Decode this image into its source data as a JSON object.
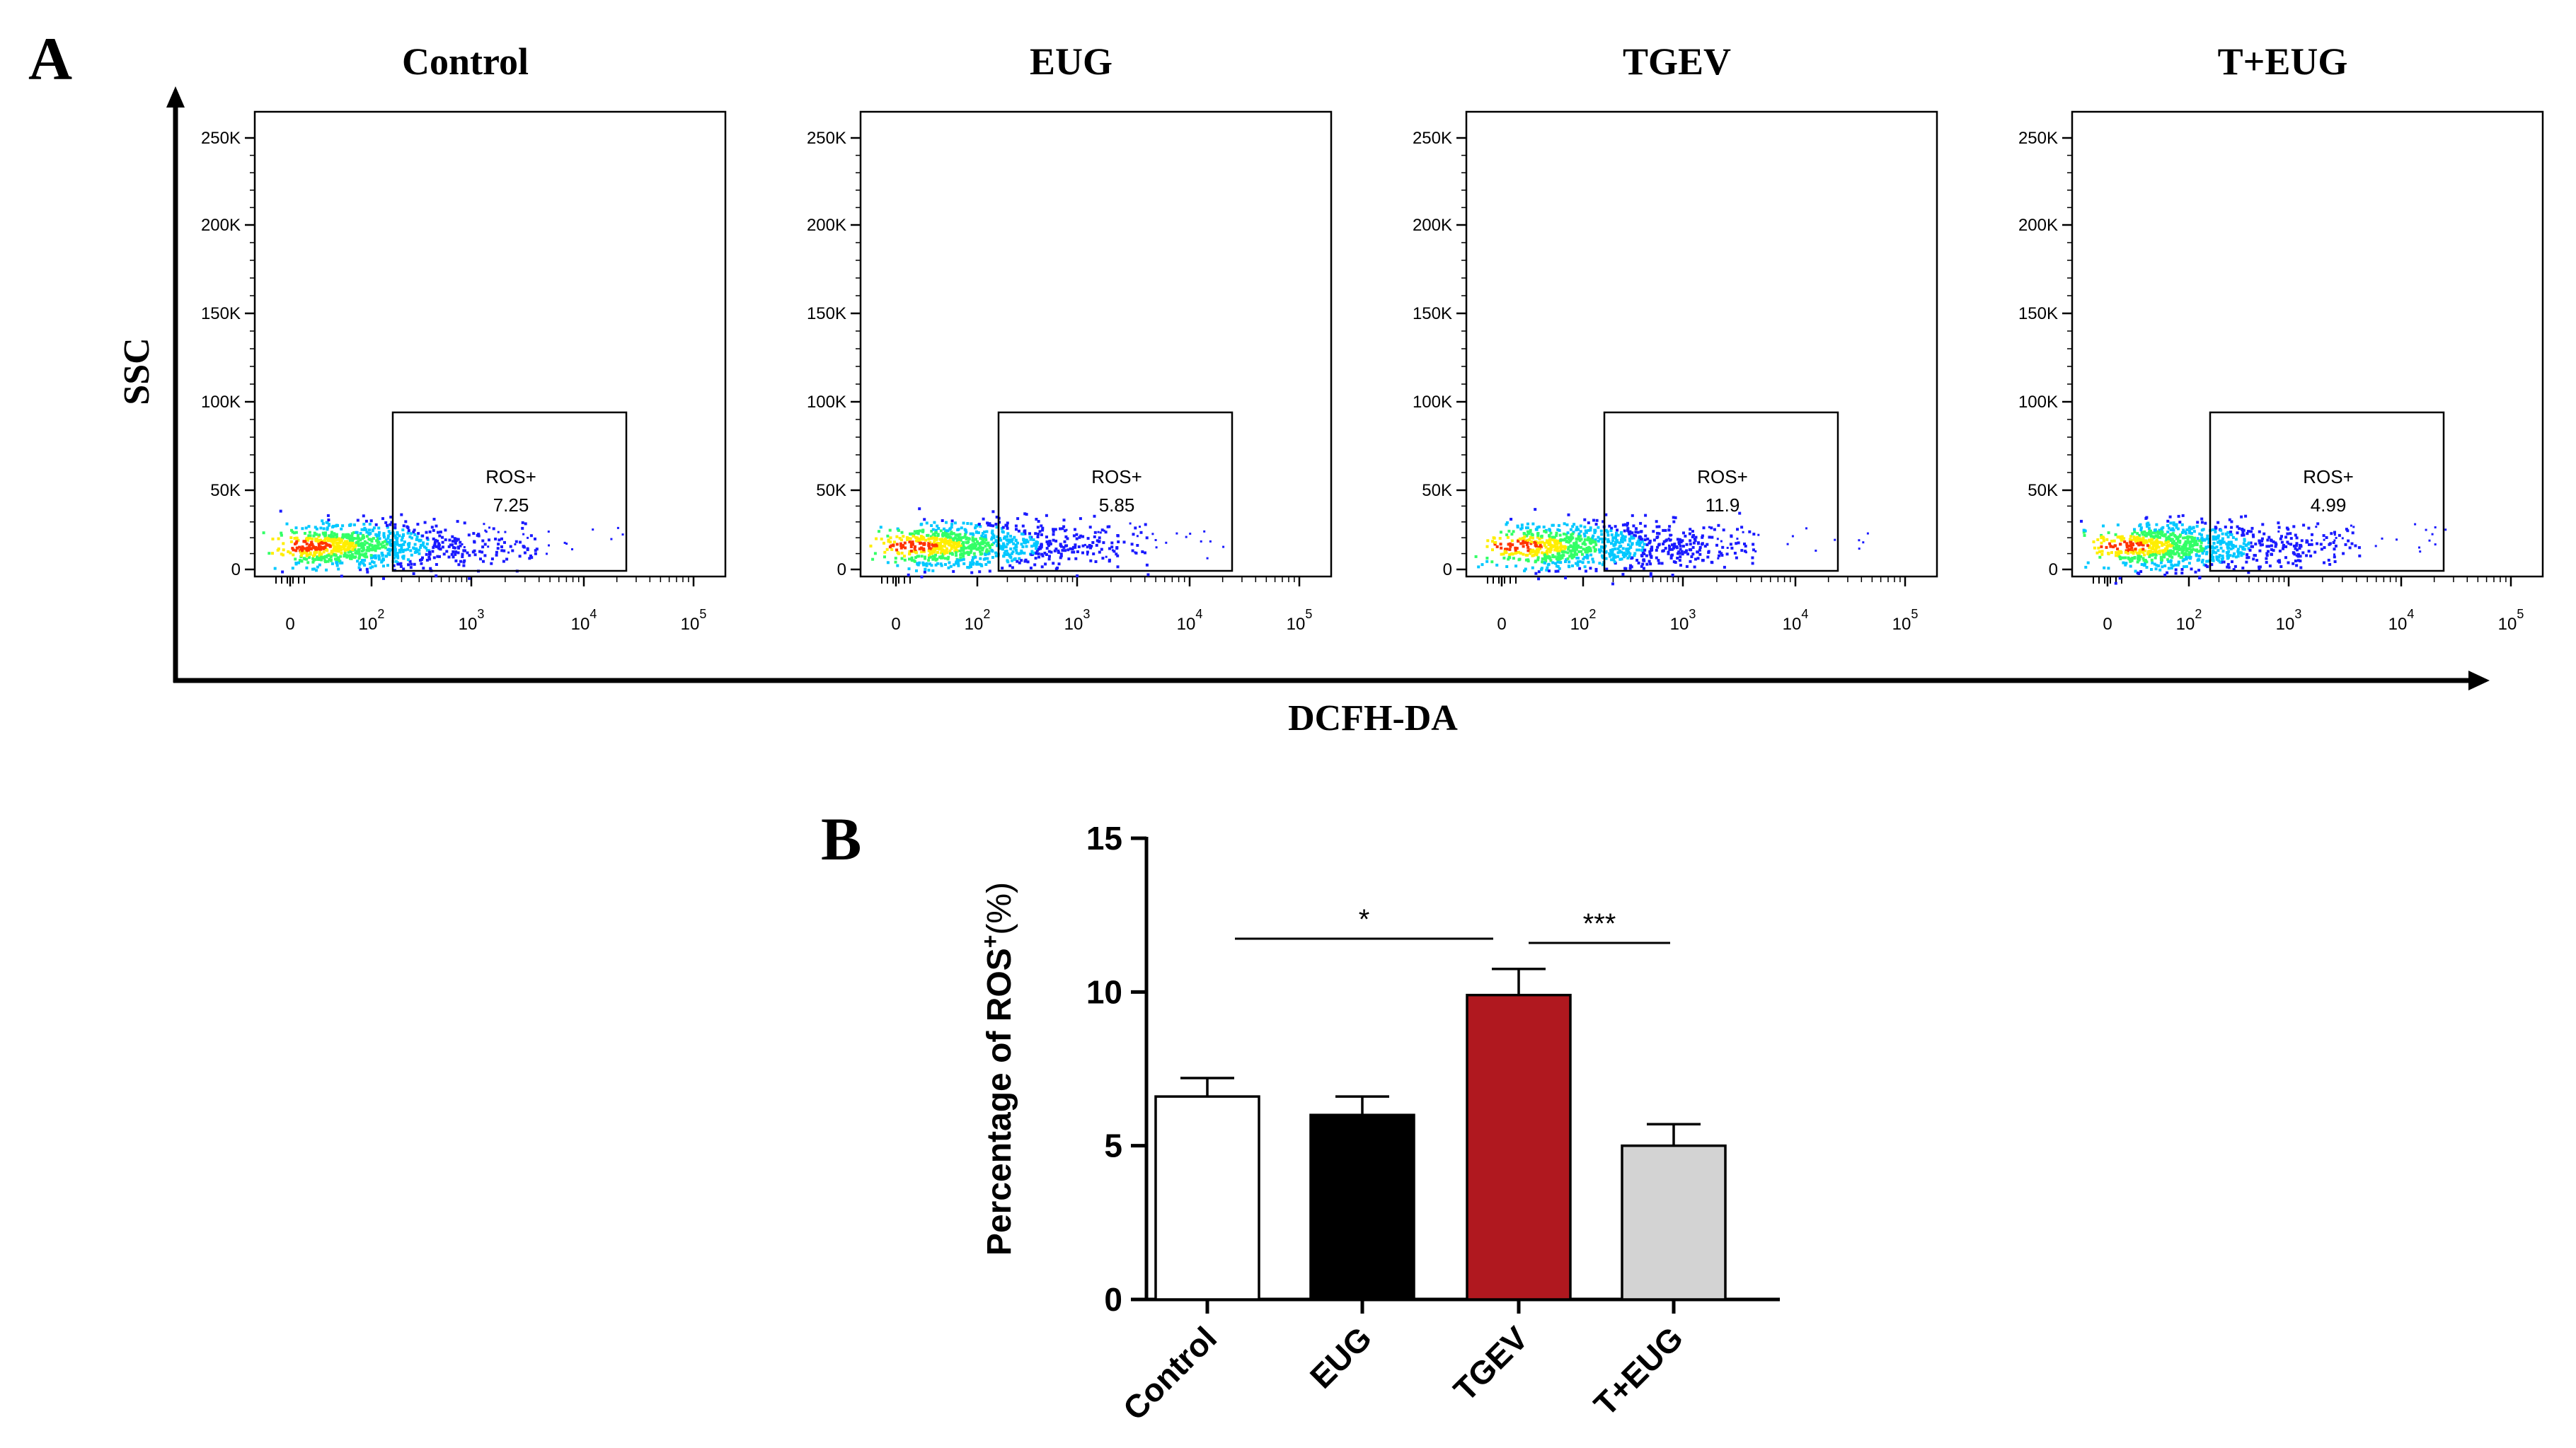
{
  "panel_a": {
    "letter": "A",
    "y_axis_label": "SSC",
    "x_axis_label": "DCFH-DA",
    "y_ticks": [
      "250K",
      "200K",
      "150K",
      "100K",
      "50K",
      "0"
    ],
    "x_ticks": [
      {
        "base": "0",
        "exp": ""
      },
      {
        "base": "10",
        "exp": "2"
      },
      {
        "base": "10",
        "exp": "3"
      },
      {
        "base": "10",
        "exp": "4"
      },
      {
        "base": "10",
        "exp": "5"
      }
    ],
    "gate_label": "ROS+",
    "plots": [
      {
        "title": "Control",
        "gate_value": "7.25"
      },
      {
        "title": "EUG",
        "gate_value": "5.85"
      },
      {
        "title": "TGEV",
        "gate_value": "11.9"
      },
      {
        "title": "T+EUG",
        "gate_value": "4.99"
      }
    ],
    "density_colors": [
      "#1a1aff",
      "#00c8ff",
      "#33ff66",
      "#ffee00",
      "#ff3300"
    ]
  },
  "chart_data": {
    "type": "bar",
    "panel_letter": "B",
    "categories": [
      "Control",
      "EUG",
      "TGEV",
      "T+EUG"
    ],
    "values": [
      6.6,
      6.0,
      9.9,
      5.0
    ],
    "errors": [
      0.6,
      0.6,
      0.85,
      0.7
    ],
    "bar_colors": [
      "#ffffff",
      "#000000",
      "#b0181f",
      "#d3d3d3"
    ],
    "ylabel": "Percentage of ROS",
    "ylabel_superscript": "+",
    "ylabel_unit": "(%)",
    "ylim": [
      0,
      15
    ],
    "yticks": [
      0,
      5,
      10,
      15
    ],
    "significance": [
      {
        "from": "Control",
        "to": "TGEV",
        "label": "*"
      },
      {
        "from": "TGEV",
        "to": "T+EUG",
        "label": "***"
      }
    ]
  }
}
